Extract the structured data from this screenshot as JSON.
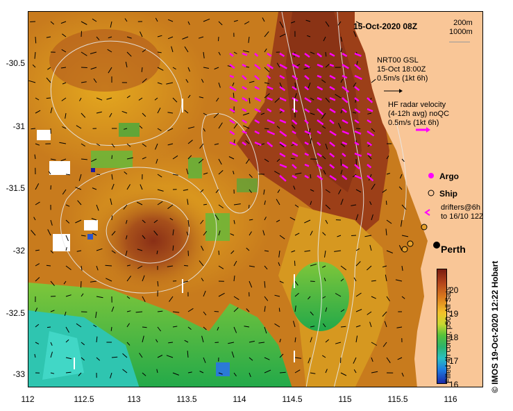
{
  "map": {
    "date_title": "15-Oct-2020 08Z",
    "depth_contours": [
      "200m",
      "1000m"
    ],
    "place_label": "Perth",
    "credit": "© IMOS 19-Oct-2020 12:22 Hobart",
    "y_ticks": [
      "-30.5",
      "-31",
      "-31.5",
      "-32",
      "-32.5",
      "-33"
    ],
    "x_ticks": [
      "112",
      "112.5",
      "113",
      "113.5",
      "114",
      "114.5",
      "115",
      "115.5",
      "116"
    ],
    "colors": {
      "land": "#f9c697",
      "sst_warm": "#a0441a",
      "sst_mid": "#d9931a",
      "sst_cool": "#35b33c",
      "sst_cold": "#30c6b5",
      "nrt_arrows": "#000000",
      "hf_radar_arrows": "#ff00ff",
      "contours": "#e8e8e8"
    }
  },
  "legend": {
    "nrt_lines": [
      "NRT00 GSL",
      "15-Oct 18:00Z",
      "0.5m/s (1kt 6h)"
    ],
    "hf_lines": [
      "HF radar velocity",
      "(4-12h avg) noQC",
      "0.5m/s (1kt 6h)"
    ],
    "argo": "Argo",
    "ship": "Ship",
    "drifters": [
      "drifters@6h",
      "to 16/10 12Z"
    ]
  },
  "colorbar": {
    "ticks": [
      "20",
      "19",
      "18",
      "17",
      "16"
    ],
    "label": "Filled 4h comp, p50, All Sats"
  }
}
